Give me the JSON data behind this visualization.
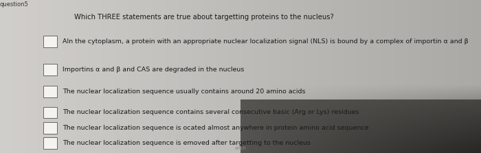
{
  "title": "Which THREE statements are true about targetting proteins to the nucleus?",
  "background_left": "#c8c6c0",
  "background_right": "#1a1a1a",
  "paper_color": "#f0eeea",
  "text_color": "#1a1a1a",
  "checkbox_color": "#f5f3ef",
  "checkbox_edge": "#666666",
  "title_fontsize": 7.2,
  "option_fontsize": 6.8,
  "options": [
    "Aln the cytoplasm, a protein with an appropriate nuclear localization signal (NLS) is bound by a complex of importin α and β",
    "Importins α and β and CAS are degraded in the nucleus",
    "The nuclear localization sequence usually contains around 20 amino acids",
    "The nuclear localization sequence contains several consecutive basic (Arg or Lys) residues",
    "The nuclear localization sequence is ocated almost anywhere in protein amino acid sequence",
    "The nuclear localization sequence is emoved after targetting to the nucleus"
  ],
  "figsize": [
    7.0,
    2.23
  ],
  "dpi": 100
}
